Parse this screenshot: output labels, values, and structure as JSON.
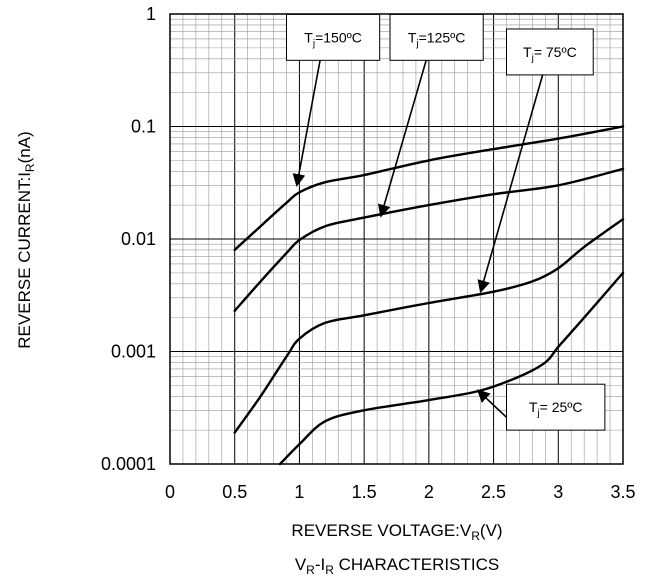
{
  "chart_data": {
    "type": "line",
    "title": "VR-IR CHARACTERISTICS",
    "title_parts": {
      "base": "V",
      "sub1": "R",
      "mid": "-I",
      "sub2": "R",
      "tail": " CHARACTERISTICS"
    },
    "xlabel": "REVERSE VOLTAGE:VR(V)",
    "xlabel_parts": {
      "base": "REVERSE VOLTAGE:V",
      "sub": "R",
      "tail": "(V)"
    },
    "ylabel": "REVERSE CURRENT:IR(nA)",
    "ylabel_parts": {
      "base": "REVERSE CURRENT:I",
      "sub": "R",
      "tail": "(nA)"
    },
    "x_scale": "linear",
    "y_scale": "log",
    "xlim": [
      0,
      3.5
    ],
    "ylim": [
      0.0001,
      1
    ],
    "grid": true,
    "x_ticks": [
      "0",
      "0.5",
      "1",
      "1.5",
      "2",
      "2.5",
      "3",
      "3.5"
    ],
    "y_ticks": [
      "0.0001",
      "0.001",
      "0.01",
      "0.1",
      "1"
    ],
    "series": [
      {
        "name": "Tj=150ºC",
        "label_parts": {
          "base": "T",
          "sub": "j",
          "tail": "=150ºC"
        },
        "x": [
          0.5,
          0.7,
          0.9,
          1.0,
          1.2,
          1.5,
          2.0,
          2.5,
          3.0,
          3.5
        ],
        "y": [
          0.008,
          0.013,
          0.021,
          0.026,
          0.032,
          0.037,
          0.05,
          0.063,
          0.078,
          0.1
        ]
      },
      {
        "name": "Tj=125ºC",
        "label_parts": {
          "base": "T",
          "sub": "j",
          "tail": "=125ºC"
        },
        "x": [
          0.5,
          0.7,
          0.9,
          1.0,
          1.2,
          1.5,
          2.0,
          2.5,
          3.0,
          3.5
        ],
        "y": [
          0.0023,
          0.0042,
          0.0075,
          0.0098,
          0.013,
          0.0155,
          0.02,
          0.025,
          0.03,
          0.042
        ]
      },
      {
        "name": "Tj= 75ºC",
        "label_parts": {
          "base": "T",
          "sub": "j",
          "tail": "= 75ºC"
        },
        "x": [
          0.5,
          0.7,
          0.9,
          1.0,
          1.2,
          1.5,
          2.0,
          2.5,
          2.8,
          3.0,
          3.2,
          3.5
        ],
        "y": [
          0.00019,
          0.0004,
          0.0009,
          0.0013,
          0.0018,
          0.0021,
          0.0027,
          0.0034,
          0.0042,
          0.0055,
          0.0085,
          0.015
        ]
      },
      {
        "name": "Tj= 25ºC",
        "label_parts": {
          "base": "T",
          "sub": "j",
          "tail": "= 25ºC"
        },
        "x": [
          0.85,
          1.0,
          1.2,
          1.5,
          2.0,
          2.4,
          2.7,
          2.9,
          3.0,
          3.2,
          3.5
        ],
        "y": [
          0.0001,
          0.00015,
          0.00024,
          0.0003,
          0.00037,
          0.00045,
          0.0006,
          0.0008,
          0.0011,
          0.002,
          0.005
        ]
      }
    ],
    "callouts": [
      {
        "series": 0,
        "box": {
          "x": 0.9,
          "y": 0.62,
          "w": 0.72,
          "h": 1.6
        },
        "arrow_from": {
          "x": 1.16,
          "y": 0.39
        },
        "arrow_to": {
          "x": 0.98,
          "y": 0.03
        }
      },
      {
        "series": 1,
        "box": {
          "x": 1.7,
          "y": 0.62,
          "w": 0.72,
          "h": 1.6
        },
        "arrow_from": {
          "x": 1.98,
          "y": 0.39
        },
        "arrow_to": {
          "x": 1.63,
          "y": 0.016
        }
      },
      {
        "series": 2,
        "box": {
          "x": 2.6,
          "y": 0.46,
          "w": 0.67,
          "h": 1.6
        },
        "arrow_from": {
          "x": 2.88,
          "y": 0.29
        },
        "arrow_to": {
          "x": 2.4,
          "y": 0.0034
        }
      },
      {
        "series": 3,
        "box": {
          "x": 2.6,
          "y": 0.00032,
          "w": 0.76,
          "h": 1.6
        },
        "arrow_from": {
          "x": 2.6,
          "y": 0.00026
        },
        "arrow_to": {
          "x": 2.38,
          "y": 0.00045
        }
      }
    ]
  }
}
